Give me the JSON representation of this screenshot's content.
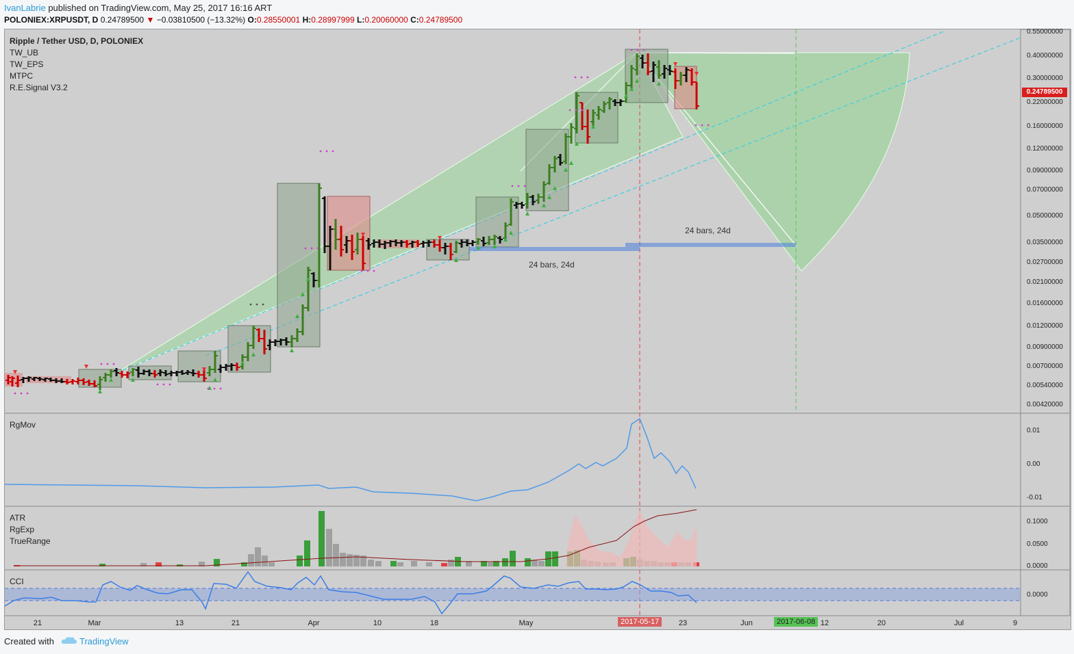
{
  "header": {
    "user": "IvanLabrie",
    "published": " published on TradingView.com, May 25, 2017 16:16 ART",
    "symbol": "POLONIEX:XRPUSDT, D",
    "price": "0.24789500",
    "change": "−0.03810500 (−13.32%)",
    "o_label": "O:",
    "o_value": "0.28550001",
    "h_label": "H:",
    "h_value": "0.28997999",
    "l_label": "L:",
    "l_value": "0.20060000",
    "c_label": "C:",
    "c_value": "0.24789500"
  },
  "main_legend": [
    "Ripple / Tether USD, D, POLONIEX",
    "TW_UB",
    "TW_EPS",
    "MTPC",
    "R.E.Signal V3.2"
  ],
  "rgmov_legend": "RgMov",
  "atr_legend": [
    "ATR",
    "RgExp",
    "TrueRange"
  ],
  "cci_legend": "CCI",
  "price_axis": [
    "0.55000000",
    "0.40000000",
    "0.30000000",
    "0.22000000",
    "0.16000000",
    "0.12000000",
    "0.09000000",
    "0.07000000",
    "0.05000000",
    "0.03500000",
    "0.02700000",
    "0.02100000",
    "0.01600000",
    "0.01200000",
    "0.00900000",
    "0.00700000",
    "0.00540000",
    "0.00420000"
  ],
  "last_price": "0.24789500",
  "rgmov_axis": [
    "0.01",
    "0.00",
    "-0.01"
  ],
  "atr_axis": [
    "0.1000",
    "0.0500",
    "0.0000"
  ],
  "cci_axis": [
    "0.0000"
  ],
  "x_axis": [
    "21",
    "Mar",
    "13",
    "21",
    "Apr",
    "10",
    "18",
    "May",
    "23",
    "Jun",
    "12",
    "20",
    "Jul",
    "9"
  ],
  "date_badges": {
    "cursor": "2017-05-17",
    "target": "2017-06-08"
  },
  "annotations": {
    "bars1": "24 bars, 24d",
    "bars2": "24 bars, 24d"
  },
  "colors": {
    "bull": "#3a7d1e",
    "bear": "#cc0000",
    "neutral": "#111111",
    "fan": "#7ed67e",
    "accent": "#2a9bd6"
  },
  "footer": {
    "created": "Created with",
    "brand": "TradingView"
  }
}
